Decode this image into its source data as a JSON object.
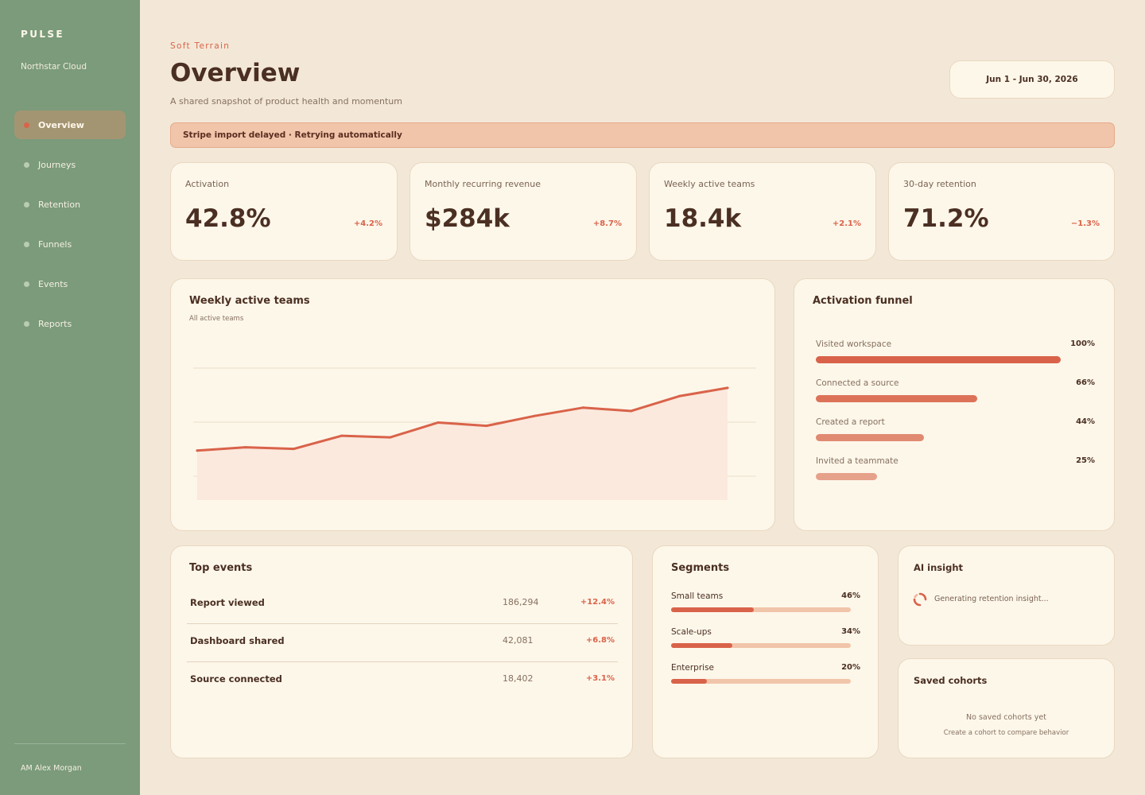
{
  "app": {
    "brand": "PULSE",
    "workspace": "Northstar Cloud"
  },
  "sidebar": {
    "items": [
      {
        "label": "Overview"
      },
      {
        "label": "Journeys"
      },
      {
        "label": "Retention"
      },
      {
        "label": "Funnels"
      },
      {
        "label": "Events"
      },
      {
        "label": "Reports"
      }
    ],
    "active_index": 0,
    "user": "AM Alex Morgan"
  },
  "header": {
    "eyebrow": "Soft Terrain",
    "title": "Overview",
    "subtitle": "A shared snapshot of product health and momentum",
    "date_range": "Jun 1 - Jun 30, 2026"
  },
  "alert": {
    "text": "Stripe import delayed · Retrying automatically"
  },
  "kpis": [
    {
      "label": "Activation",
      "value": "42.8%",
      "delta": "+4.2%"
    },
    {
      "label": "Monthly recurring revenue",
      "value": "$284k",
      "delta": "+8.7%"
    },
    {
      "label": "Weekly active teams",
      "value": "18.4k",
      "delta": "+2.1%"
    },
    {
      "label": "30-day retention",
      "value": "71.2%",
      "delta": "−1.3%"
    }
  ],
  "weekly_chart": {
    "title": "Weekly active teams",
    "subtitle": "All active teams"
  },
  "chart_data": {
    "type": "area",
    "title": "Weekly active teams",
    "subtitle": "All active teams",
    "series": [
      {
        "values": [
          20,
          22,
          21,
          29,
          28,
          37,
          35,
          41,
          46,
          44,
          53,
          58
        ]
      }
    ],
    "ylim": [
      -10,
      70
    ],
    "grid": true,
    "color": "#d9634a",
    "fill": "#fbe9dd"
  },
  "funnel": {
    "title": "Activation funnel",
    "steps": [
      {
        "label": "Visited workspace",
        "pct_label": "100%",
        "value": 1.0,
        "color": "#d9634a"
      },
      {
        "label": "Connected a source",
        "pct_label": "66%",
        "value": 0.66,
        "color": "#dc7359"
      },
      {
        "label": "Created a report",
        "pct_label": "44%",
        "value": 0.44,
        "color": "#e08a71"
      },
      {
        "label": "Invited a teammate",
        "pct_label": "25%",
        "value": 0.25,
        "color": "#e6a18a"
      }
    ]
  },
  "top_events": {
    "title": "Top events",
    "rows": [
      {
        "name": "Report viewed",
        "count": "186,294",
        "delta": "+12.4%"
      },
      {
        "name": "Dashboard shared",
        "count": "42,081",
        "delta": "+6.8%"
      },
      {
        "name": "Source connected",
        "count": "18,402",
        "delta": "+3.1%"
      }
    ]
  },
  "segments": {
    "title": "Segments",
    "rows": [
      {
        "label": "Small teams",
        "pct_label": "46%",
        "value": 0.46
      },
      {
        "label": "Scale-ups",
        "pct_label": "34%",
        "value": 0.34
      },
      {
        "label": "Enterprise",
        "pct_label": "20%",
        "value": 0.2
      }
    ]
  },
  "ai_insight": {
    "title": "AI insight",
    "status": "Generating retention insight..."
  },
  "saved_cohorts": {
    "title": "Saved cohorts",
    "empty_title": "No saved cohorts yet",
    "empty_subtitle": "Create a cohort to compare behavior"
  }
}
